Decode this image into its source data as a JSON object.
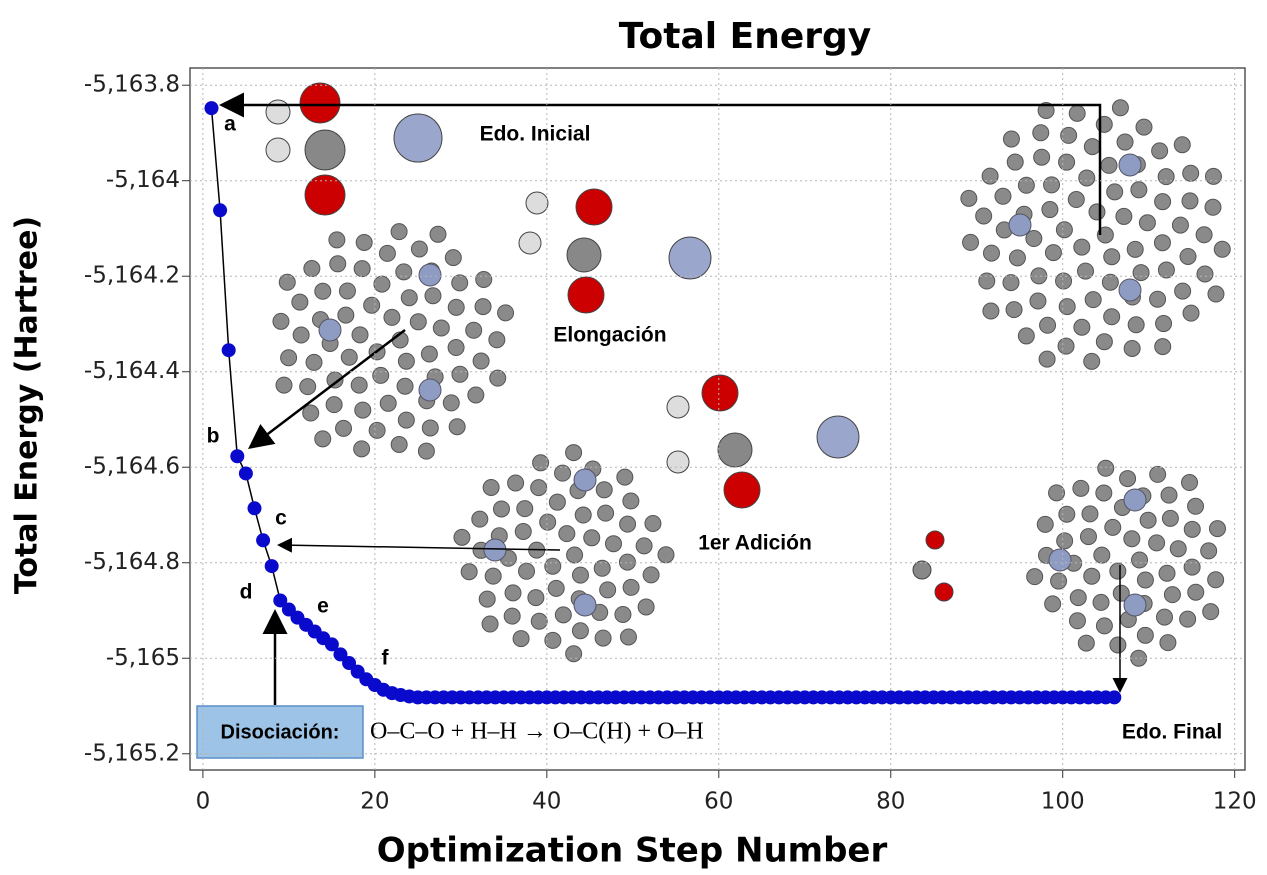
{
  "chart_data": {
    "type": "scatter",
    "title": "Total Energy",
    "x_label": "Optimization Step Number",
    "y_label": "Total Energy (Hartree)",
    "xlim": [
      -1.5,
      121.2
    ],
    "ylim": [
      -5165.234,
      -5163.764
    ],
    "xticks": [
      0,
      20,
      40,
      60,
      80,
      100,
      120
    ],
    "yticks": [
      {
        "value": -5163.8,
        "label": "-5,163.8"
      },
      {
        "value": -5164,
        "label": "-5,164"
      },
      {
        "value": -5164.2,
        "label": "-5,164.2"
      },
      {
        "value": -5164.4,
        "label": "-5,164.4"
      },
      {
        "value": -5164.6,
        "label": "-5,164.6"
      },
      {
        "value": -5164.8,
        "label": "-5,164.8"
      },
      {
        "value": -5165,
        "label": "-5,165"
      },
      {
        "value": -5165.2,
        "label": "-5,165.2"
      }
    ],
    "grid": true,
    "line_color": "#000000",
    "series": [
      {
        "name": "Total Energy",
        "color": "#0a0acc",
        "x": [
          1,
          2,
          3,
          4,
          5,
          6,
          7,
          8,
          9,
          10,
          11,
          12,
          13,
          14,
          15,
          16,
          17,
          18,
          19,
          20,
          21,
          22,
          23,
          24,
          25,
          26,
          27,
          28,
          29,
          30,
          31,
          32,
          33,
          34,
          35,
          36,
          37,
          38,
          39,
          40,
          41,
          42,
          43,
          44,
          45,
          46,
          47,
          48,
          49,
          50,
          51,
          52,
          53,
          54,
          55,
          56,
          57,
          58,
          59,
          60,
          61,
          62,
          63,
          64,
          65,
          66,
          67,
          68,
          69,
          70,
          71,
          72,
          73,
          74,
          75,
          76,
          77,
          78,
          79,
          80,
          81,
          82,
          83,
          84,
          85,
          86,
          87,
          88,
          89,
          90,
          91,
          92,
          93,
          94,
          95,
          96,
          97,
          98,
          99,
          100,
          101,
          102,
          103,
          104,
          105,
          106
        ],
        "values": [
          -5163.848,
          -5164.062,
          -5164.355,
          -5164.577,
          -5164.613,
          -5164.686,
          -5164.753,
          -5164.807,
          -5164.879,
          -5164.898,
          -5164.915,
          -5164.93,
          -5164.944,
          -5164.958,
          -5164.971,
          -5164.992,
          -5165.01,
          -5165.028,
          -5165.044,
          -5165.056,
          -5165.066,
          -5165.073,
          -5165.077,
          -5165.08,
          -5165.082,
          -5165.082,
          -5165.082,
          -5165.082,
          -5165.082,
          -5165.082,
          -5165.082,
          -5165.082,
          -5165.082,
          -5165.082,
          -5165.082,
          -5165.082,
          -5165.082,
          -5165.082,
          -5165.082,
          -5165.082,
          -5165.082,
          -5165.082,
          -5165.082,
          -5165.082,
          -5165.082,
          -5165.082,
          -5165.082,
          -5165.082,
          -5165.082,
          -5165.082,
          -5165.082,
          -5165.082,
          -5165.082,
          -5165.082,
          -5165.082,
          -5165.082,
          -5165.082,
          -5165.082,
          -5165.082,
          -5165.082,
          -5165.082,
          -5165.082,
          -5165.082,
          -5165.082,
          -5165.082,
          -5165.082,
          -5165.082,
          -5165.082,
          -5165.082,
          -5165.082,
          -5165.082,
          -5165.082,
          -5165.082,
          -5165.082,
          -5165.082,
          -5165.082,
          -5165.082,
          -5165.082,
          -5165.082,
          -5165.082,
          -5165.082,
          -5165.082,
          -5165.082,
          -5165.082,
          -5165.082,
          -5165.082,
          -5165.082,
          -5165.082,
          -5165.082,
          -5165.082,
          -5165.082,
          -5165.082,
          -5165.082,
          -5165.082,
          -5165.082,
          -5165.082,
          -5165.082,
          -5165.082,
          -5165.082,
          -5165.082,
          -5165.082,
          -5165.082,
          -5165.082,
          -5165.082,
          -5165.082,
          -5165.082
        ]
      }
    ],
    "annotations": [
      "a",
      "b",
      "c",
      "d",
      "e",
      "f",
      "Edo. Inicial",
      "Elongación",
      "1er Adición",
      "Edo. Final",
      "Disociación:",
      "O–C–O + H–H → O–C(H) + O–H"
    ]
  }
}
